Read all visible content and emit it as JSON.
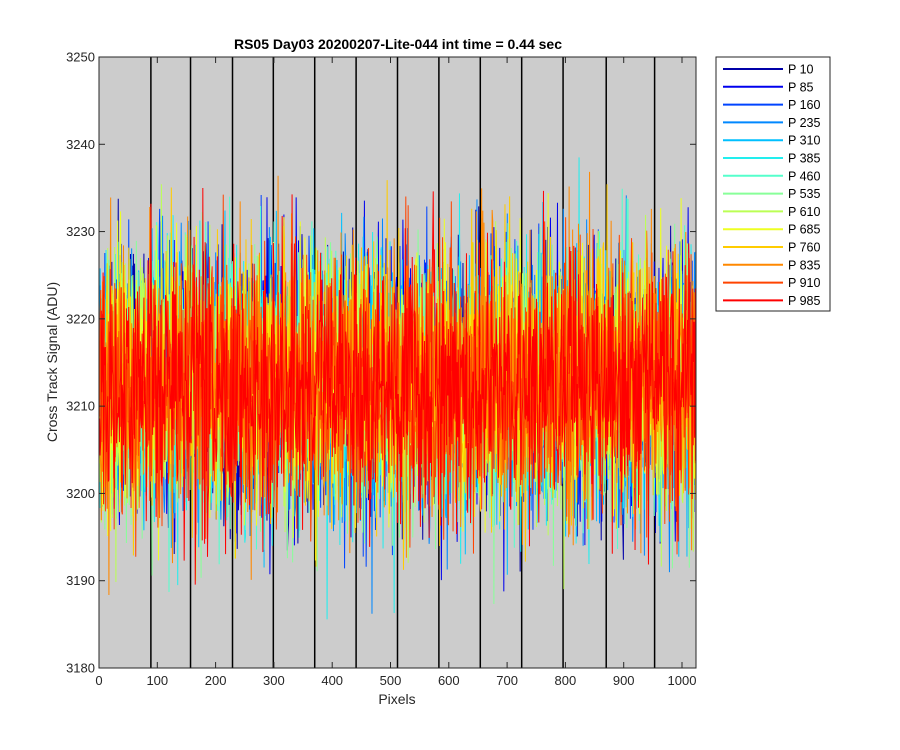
{
  "chart_data": {
    "type": "line",
    "title": "RS05 Day03 20200207-Lite-044 int time = 0.44 sec",
    "xlabel": "Pixels",
    "ylabel": "Cross Track Signal (ADU)",
    "xlim": [
      0,
      1024
    ],
    "ylim": [
      3180,
      3250
    ],
    "xticks": [
      0,
      100,
      200,
      300,
      400,
      500,
      600,
      700,
      800,
      900,
      1000
    ],
    "yticks": [
      3180,
      3190,
      3200,
      3210,
      3220,
      3230,
      3240,
      3250
    ],
    "background": "#cccccc",
    "grid": false,
    "legend_position": "outside-top-right",
    "vertical_lines": [
      89,
      157,
      229,
      299,
      370,
      441,
      512,
      583,
      654,
      725,
      796,
      870,
      953
    ],
    "vertical_line_color": "#000000",
    "noise": {
      "mean": 3212.5,
      "typical_min": 3198,
      "typical_max": 3228,
      "points_per_series": 1024
    },
    "series": [
      {
        "name": "P 10",
        "color": "#0000a8"
      },
      {
        "name": "P 85",
        "color": "#0000ee"
      },
      {
        "name": "P 160",
        "color": "#0044ff"
      },
      {
        "name": "P 235",
        "color": "#0088ff"
      },
      {
        "name": "P 310",
        "color": "#00c0ff"
      },
      {
        "name": "P 385",
        "color": "#22eeee"
      },
      {
        "name": "P 460",
        "color": "#55ffcc"
      },
      {
        "name": "P 535",
        "color": "#88ff99"
      },
      {
        "name": "P 610",
        "color": "#bbff55"
      },
      {
        "name": "P 685",
        "color": "#eeff22"
      },
      {
        "name": "P 760",
        "color": "#ffcc00"
      },
      {
        "name": "P 835",
        "color": "#ff8800"
      },
      {
        "name": "P 910",
        "color": "#ff4400"
      },
      {
        "name": "P 985",
        "color": "#ff0000"
      }
    ]
  }
}
